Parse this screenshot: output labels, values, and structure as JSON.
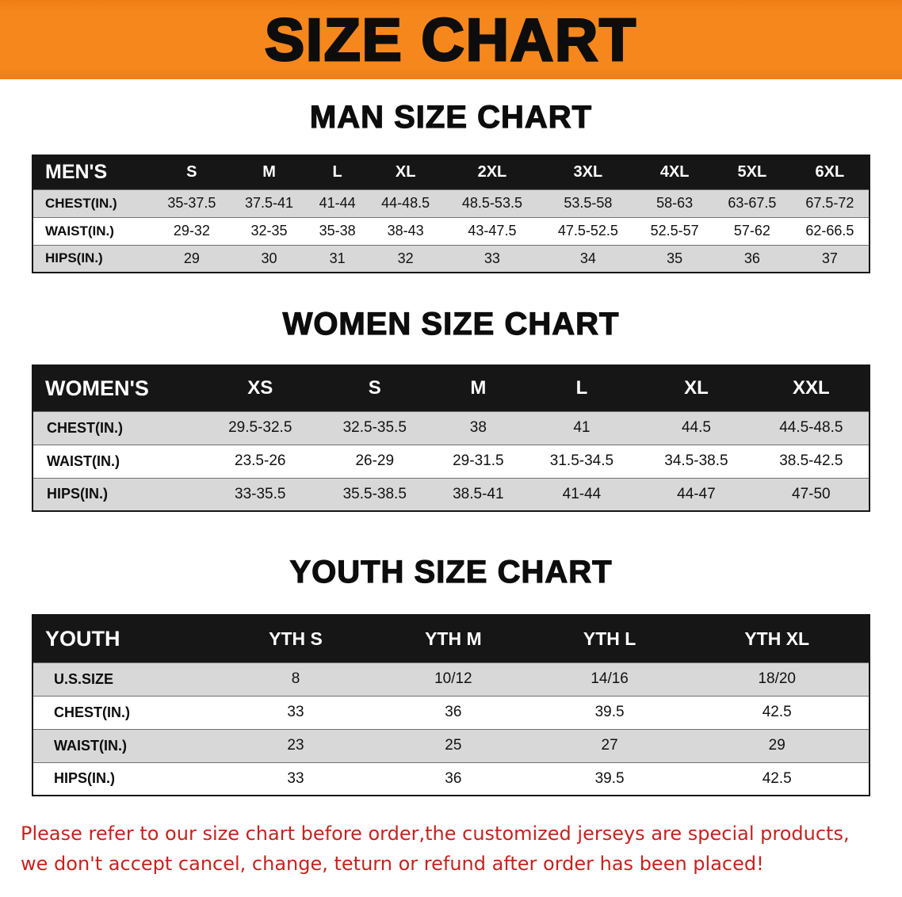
{
  "colors": {
    "banner_orange": "#f6871c",
    "header_black": "#161616",
    "row_gray": "#d8d8d8",
    "notice_red": "#c5231f"
  },
  "banner": {
    "title": "SIZE CHART"
  },
  "sections": [
    {
      "heading": "MAN SIZE CHART",
      "table": {
        "header": [
          "MEN'S",
          "S",
          "M",
          "L",
          "XL",
          "2XL",
          "3XL",
          "4XL",
          "5XL",
          "6XL"
        ],
        "rows": [
          {
            "label": "CHEST(IN.)",
            "values": [
              "35-37.5",
              "37.5-41",
              "41-44",
              "44-48.5",
              "48.5-53.5",
              "53.5-58",
              "58-63",
              "63-67.5",
              "67.5-72"
            ]
          },
          {
            "label": "WAIST(IN.)",
            "values": [
              "29-32",
              "32-35",
              "35-38",
              "38-43",
              "43-47.5",
              "47.5-52.5",
              "52.5-57",
              "57-62",
              "62-66.5"
            ]
          },
          {
            "label": "HIPS(IN.)",
            "values": [
              "29",
              "30",
              "31",
              "32",
              "33",
              "34",
              "35",
              "36",
              "37"
            ]
          }
        ]
      }
    },
    {
      "heading": "WOMEN SIZE CHART",
      "table": {
        "header": [
          "WOMEN'S",
          "XS",
          "S",
          "M",
          "L",
          "XL",
          "XXL"
        ],
        "rows": [
          {
            "label": "CHEST(IN.)",
            "values": [
              "29.5-32.5",
              "32.5-35.5",
              "38",
              "41",
              "44.5",
              "44.5-48.5"
            ]
          },
          {
            "label": "WAIST(IN.)",
            "values": [
              "23.5-26",
              "26-29",
              "29-31.5",
              "31.5-34.5",
              "34.5-38.5",
              "38.5-42.5"
            ]
          },
          {
            "label": "HIPS(IN.)",
            "values": [
              "33-35.5",
              "35.5-38.5",
              "38.5-41",
              "41-44",
              "44-47",
              "47-50"
            ]
          }
        ]
      }
    },
    {
      "heading": "YOUTH SIZE CHART",
      "table": {
        "header": [
          "YOUTH",
          "YTH S",
          "YTH M",
          "YTH L",
          "YTH XL"
        ],
        "rows": [
          {
            "label": "U.S.SIZE",
            "values": [
              "8",
              "10/12",
              "14/16",
              "18/20"
            ]
          },
          {
            "label": "CHEST(IN.)",
            "values": [
              "33",
              "36",
              "39.5",
              "42.5"
            ]
          },
          {
            "label": "WAIST(IN.)",
            "values": [
              "23",
              "25",
              "27",
              "29"
            ]
          },
          {
            "label": "HIPS(IN.)",
            "values": [
              "33",
              "36",
              "39.5",
              "42.5"
            ]
          }
        ]
      }
    }
  ],
  "footer": {
    "line1": "Please refer to our size chart before order,the customized jerseys are special products,",
    "line2": "we don't accept cancel, change, teturn or refund after order has been placed!"
  }
}
